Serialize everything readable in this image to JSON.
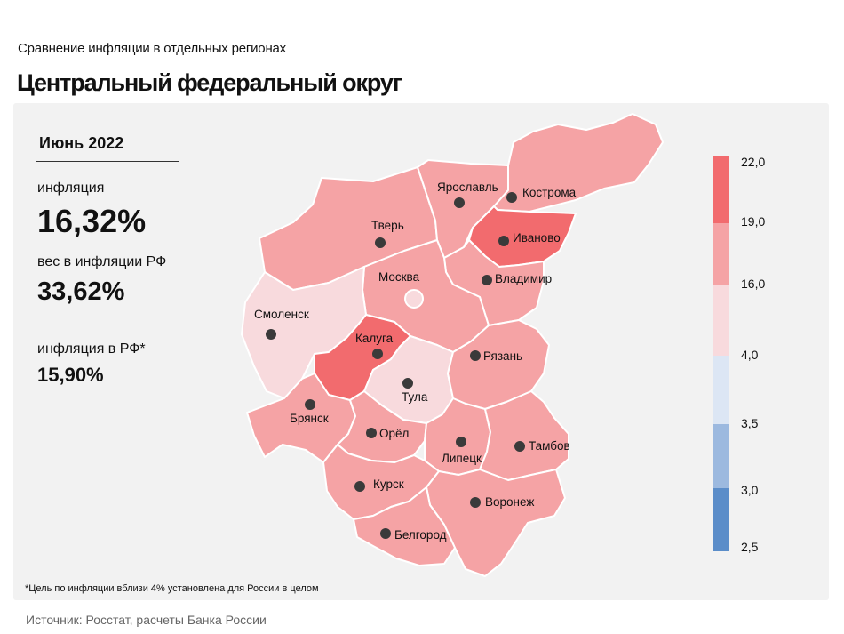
{
  "header": {
    "subtitle": "Сравнение  инфляции  в отдельных  регионах",
    "title": "Центральный федеральный округ"
  },
  "summary": {
    "period": "Июнь 2022",
    "inflation_label": "инфляция",
    "inflation_value": "16,32%",
    "weight_label": "вес в инфляции  РФ",
    "weight_value": "33,62%",
    "rf_label": "инфляция  в РФ*",
    "rf_value": "15,90%"
  },
  "legend": {
    "ticks": [
      "22,0",
      "19,0",
      "16,0",
      "4,0",
      "3,5",
      "3,0",
      "2,5"
    ],
    "colors": [
      "#f26b6e",
      "#f5a3a5",
      "#f8dadd",
      "#dce6f4",
      "#9cb9df",
      "#5b8dc9"
    ]
  },
  "regions": [
    {
      "name": "Москва",
      "color": "#f5a3a5"
    },
    {
      "name": "Тверь",
      "color": "#f5a3a5"
    },
    {
      "name": "Ярославль",
      "color": "#f5a3a5"
    },
    {
      "name": "Кострома",
      "color": "#f5a3a5"
    },
    {
      "name": "Иваново",
      "color": "#f26b6e"
    },
    {
      "name": "Владимир",
      "color": "#f5a3a5"
    },
    {
      "name": "Смоленск",
      "color": "#f8dadd"
    },
    {
      "name": "Калуга",
      "color": "#f26b6e"
    },
    {
      "name": "Тула",
      "color": "#f8dadd"
    },
    {
      "name": "Рязань",
      "color": "#f5a3a5"
    },
    {
      "name": "Брянск",
      "color": "#f5a3a5"
    },
    {
      "name": "Орёл",
      "color": "#f5a3a5"
    },
    {
      "name": "Липецк",
      "color": "#f5a3a5"
    },
    {
      "name": "Тамбов",
      "color": "#f5a3a5"
    },
    {
      "name": "Курск",
      "color": "#f5a3a5"
    },
    {
      "name": "Воронеж",
      "color": "#f5a3a5"
    },
    {
      "name": "Белгород",
      "color": "#f5a3a5"
    }
  ],
  "footnote": "*Цель по инфляции вблизи 4% установлена для России в целом",
  "source": "Источник: Росстат, расчеты Банка России"
}
